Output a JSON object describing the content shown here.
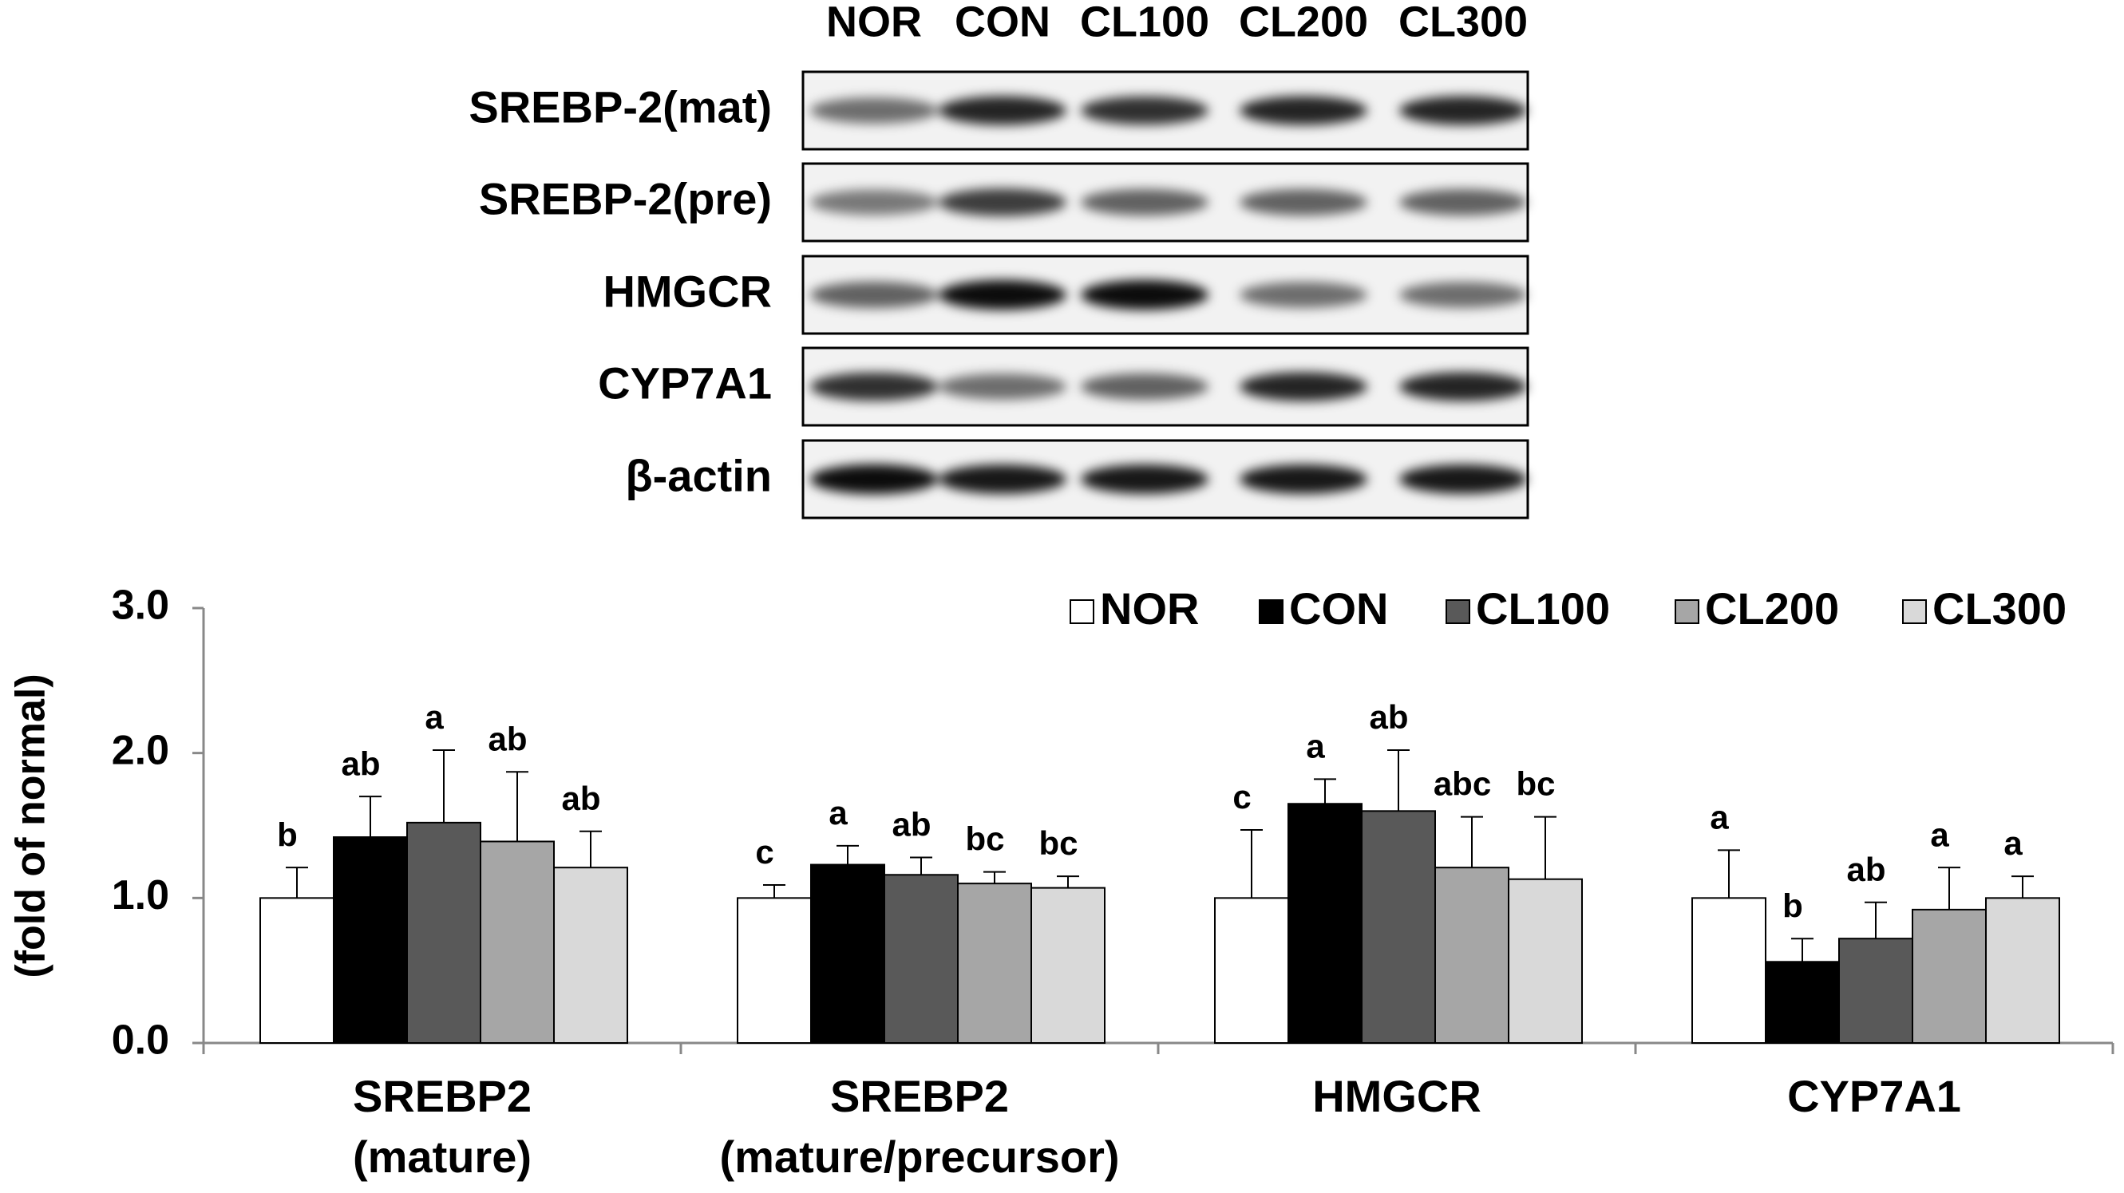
{
  "blot": {
    "lanes": [
      "NOR",
      "CON",
      "CL100",
      "CL200",
      "CL300"
    ],
    "rows": [
      "SREBP-2(mat)",
      "SREBP-2(pre)",
      "HMGCR",
      "CYP7A1",
      "β-actin"
    ]
  },
  "chart_data": {
    "type": "bar",
    "y_label": "(fold of normal)",
    "categories": [
      "SREBP2 (mature)",
      "SREBP2 (mature/precursor)",
      "HMGCR",
      "CYP7A1"
    ],
    "series": [
      {
        "name": "NOR",
        "color": "#ffffff",
        "values": [
          1.0,
          1.0,
          1.0,
          1.0
        ],
        "errors": [
          0.21,
          0.09,
          0.47,
          0.33
        ],
        "letters": [
          "b",
          "c",
          "c",
          "a"
        ]
      },
      {
        "name": "CON",
        "color": "#000000",
        "values": [
          1.42,
          1.23,
          1.65,
          0.56
        ],
        "errors": [
          0.28,
          0.13,
          0.17,
          0.16
        ],
        "letters": [
          "ab",
          "a",
          "a",
          "b"
        ]
      },
      {
        "name": "CL100",
        "color": "#595959",
        "values": [
          1.52,
          1.16,
          1.6,
          0.72
        ],
        "errors": [
          0.5,
          0.12,
          0.42,
          0.25
        ],
        "letters": [
          "a",
          "ab",
          "ab",
          "ab"
        ]
      },
      {
        "name": "CL200",
        "color": "#a6a6a6",
        "values": [
          1.39,
          1.1,
          1.21,
          0.92
        ],
        "errors": [
          0.48,
          0.08,
          0.35,
          0.29
        ],
        "letters": [
          "ab",
          "bc",
          "abc",
          "a"
        ]
      },
      {
        "name": "CL300",
        "color": "#d9d9d9",
        "values": [
          1.21,
          1.07,
          1.13,
          1.0
        ],
        "errors": [
          0.25,
          0.08,
          0.43,
          0.15
        ],
        "letters": [
          "ab",
          "bc",
          "bc",
          "a"
        ]
      }
    ],
    "ylim": [
      0,
      3
    ],
    "yticks": [
      {
        "value": 0,
        "label": "0.0"
      },
      {
        "value": 1,
        "label": "1.0"
      },
      {
        "value": 2,
        "label": "2.0"
      },
      {
        "value": 3,
        "label": "3.0"
      }
    ],
    "legend": "upper right"
  }
}
